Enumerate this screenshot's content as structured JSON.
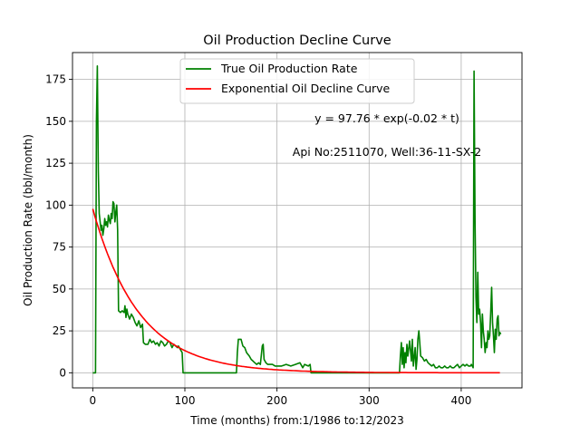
{
  "chart_data": {
    "type": "line",
    "title": "Oil Production Decline Curve",
    "xlabel": "Time (months) from:1/1986 to:12/2023",
    "ylabel": "Oil Production Rate (bbl/month)",
    "xlim": [
      -22,
      466
    ],
    "ylim": [
      -9,
      191
    ],
    "xticks": [
      0,
      100,
      200,
      300,
      400
    ],
    "yticks": [
      0,
      25,
      50,
      75,
      100,
      125,
      150,
      175
    ],
    "grid": true,
    "legend_position": "top-center",
    "annotations": [
      {
        "text": "y = 97.76 * exp(-0.02 * t)",
        "x": 320,
        "y": 148
      },
      {
        "text": "Api No:2511070, Well:36-11-SX-2",
        "x": 320,
        "y": 129
      }
    ],
    "series": [
      {
        "name": "True Oil Production Rate",
        "color": "#008000",
        "points": [
          [
            0,
            0
          ],
          [
            2,
            0
          ],
          [
            3,
            0
          ],
          [
            4,
            150
          ],
          [
            5,
            183
          ],
          [
            6,
            120
          ],
          [
            7,
            95
          ],
          [
            8,
            90
          ],
          [
            9,
            85
          ],
          [
            10,
            88
          ],
          [
            11,
            82
          ],
          [
            12,
            86
          ],
          [
            13,
            92
          ],
          [
            14,
            88
          ],
          [
            15,
            90
          ],
          [
            16,
            87
          ],
          [
            17,
            94
          ],
          [
            18,
            91
          ],
          [
            19,
            89
          ],
          [
            20,
            95
          ],
          [
            21,
            92
          ],
          [
            22,
            102
          ],
          [
            23,
            101
          ],
          [
            24,
            90
          ],
          [
            25,
            96
          ],
          [
            26,
            100
          ],
          [
            27,
            85
          ],
          [
            28,
            37
          ],
          [
            30,
            36
          ],
          [
            32,
            37
          ],
          [
            34,
            36
          ],
          [
            35,
            40
          ],
          [
            36,
            33
          ],
          [
            37,
            38
          ],
          [
            38,
            35
          ],
          [
            40,
            32
          ],
          [
            42,
            35
          ],
          [
            44,
            33
          ],
          [
            46,
            30
          ],
          [
            48,
            28
          ],
          [
            50,
            31
          ],
          [
            52,
            27
          ],
          [
            54,
            29
          ],
          [
            55,
            18
          ],
          [
            57,
            17
          ],
          [
            60,
            17
          ],
          [
            62,
            20
          ],
          [
            64,
            18
          ],
          [
            66,
            19
          ],
          [
            68,
            17
          ],
          [
            70,
            18
          ],
          [
            72,
            16
          ],
          [
            74,
            19
          ],
          [
            76,
            18
          ],
          [
            78,
            16
          ],
          [
            80,
            17
          ],
          [
            82,
            19
          ],
          [
            84,
            18
          ],
          [
            86,
            15
          ],
          [
            88,
            17
          ],
          [
            90,
            16
          ],
          [
            92,
            15
          ],
          [
            93,
            16
          ],
          [
            95,
            14
          ],
          [
            97,
            12
          ],
          [
            98,
            0
          ],
          [
            110,
            0
          ],
          [
            130,
            0
          ],
          [
            150,
            0
          ],
          [
            156,
            0
          ],
          [
            157,
            12
          ],
          [
            158,
            20
          ],
          [
            161,
            20
          ],
          [
            163,
            16
          ],
          [
            165,
            15
          ],
          [
            167,
            12
          ],
          [
            170,
            10
          ],
          [
            172,
            8
          ],
          [
            174,
            7
          ],
          [
            176,
            6
          ],
          [
            178,
            5
          ],
          [
            180,
            6
          ],
          [
            182,
            5
          ],
          [
            184,
            16
          ],
          [
            185,
            17
          ],
          [
            186,
            8
          ],
          [
            188,
            6
          ],
          [
            190,
            5
          ],
          [
            195,
            5
          ],
          [
            198,
            4
          ],
          [
            200,
            4
          ],
          [
            205,
            4
          ],
          [
            210,
            5
          ],
          [
            215,
            4
          ],
          [
            220,
            5
          ],
          [
            225,
            6
          ],
          [
            228,
            3
          ],
          [
            230,
            5
          ],
          [
            234,
            4
          ],
          [
            236,
            5
          ],
          [
            237,
            0
          ],
          [
            240,
            0
          ],
          [
            260,
            0
          ],
          [
            280,
            0
          ],
          [
            300,
            0
          ],
          [
            320,
            0
          ],
          [
            333,
            0
          ],
          [
            334,
            10
          ],
          [
            335,
            18
          ],
          [
            336,
            5
          ],
          [
            337,
            15
          ],
          [
            338,
            3
          ],
          [
            339,
            12
          ],
          [
            340,
            6
          ],
          [
            341,
            17
          ],
          [
            342,
            10
          ],
          [
            344,
            19
          ],
          [
            346,
            7
          ],
          [
            347,
            20
          ],
          [
            348,
            4
          ],
          [
            350,
            15
          ],
          [
            351,
            2
          ],
          [
            352,
            8
          ],
          [
            353,
            20
          ],
          [
            354,
            25
          ],
          [
            355,
            18
          ],
          [
            356,
            10
          ],
          [
            358,
            9
          ],
          [
            360,
            7
          ],
          [
            362,
            8
          ],
          [
            364,
            6
          ],
          [
            366,
            5
          ],
          [
            368,
            4
          ],
          [
            370,
            5
          ],
          [
            372,
            3
          ],
          [
            374,
            3
          ],
          [
            376,
            4
          ],
          [
            378,
            3
          ],
          [
            380,
            3
          ],
          [
            382,
            4
          ],
          [
            384,
            3
          ],
          [
            386,
            3
          ],
          [
            388,
            4
          ],
          [
            390,
            3
          ],
          [
            392,
            3
          ],
          [
            394,
            4
          ],
          [
            396,
            5
          ],
          [
            398,
            3
          ],
          [
            400,
            4
          ],
          [
            402,
            5
          ],
          [
            404,
            4
          ],
          [
            406,
            5
          ],
          [
            408,
            4
          ],
          [
            410,
            4
          ],
          [
            411,
            5
          ],
          [
            412,
            4
          ],
          [
            413,
            3
          ],
          [
            414,
            180
          ],
          [
            415,
            90
          ],
          [
            416,
            45
          ],
          [
            417,
            30
          ],
          [
            418,
            60
          ],
          [
            419,
            35
          ],
          [
            420,
            38
          ],
          [
            421,
            30
          ],
          [
            422,
            15
          ],
          [
            423,
            35
          ],
          [
            424,
            25
          ],
          [
            425,
            20
          ],
          [
            426,
            12
          ],
          [
            427,
            18
          ],
          [
            428,
            15
          ],
          [
            429,
            25
          ],
          [
            430,
            20
          ],
          [
            431,
            22
          ],
          [
            432,
            35
          ],
          [
            433,
            51
          ],
          [
            434,
            30
          ],
          [
            435,
            22
          ],
          [
            436,
            12
          ],
          [
            437,
            26
          ],
          [
            438,
            20
          ],
          [
            439,
            32
          ],
          [
            440,
            34
          ],
          [
            441,
            22
          ],
          [
            442,
            24
          ],
          [
            443,
            23
          ]
        ]
      },
      {
        "name": "Exponential Oil Decline Curve",
        "color": "#ff0000",
        "function": {
          "a": 97.76,
          "b": -0.02
        },
        "x_range": [
          0,
          443
        ]
      }
    ]
  }
}
